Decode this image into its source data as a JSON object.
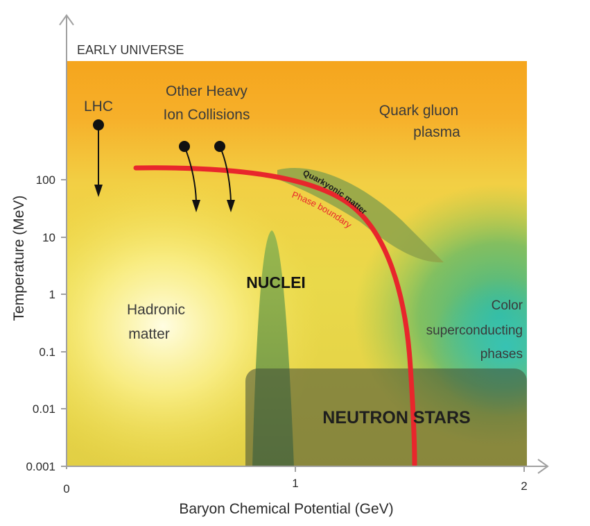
{
  "header": "EARLY UNIVERSE",
  "axes": {
    "x_label": "Baryon Chemical Potential (GeV)",
    "y_label": "Temperature (MeV)",
    "x_ticks": [
      "0",
      "1",
      "2"
    ],
    "y_ticks": [
      "100",
      "10",
      "1",
      "0.1",
      "0.01",
      "0.001"
    ],
    "y_scale": "log",
    "x_range": [
      0,
      2
    ],
    "y_range": [
      0.001,
      1000
    ]
  },
  "regions": {
    "qgp_line1": "Quark gluon",
    "qgp_line2": "plasma",
    "hadronic_line1": "Hadronic",
    "hadronic_line2": "matter",
    "nuclei": "NUCLEI",
    "neutron_stars": "NEUTRON STARS",
    "color_line1": "Color",
    "color_line2": "superconducting",
    "color_line3": "phases"
  },
  "curves": {
    "quarkyonic": "Quarkyonic matter",
    "phase_boundary": "Phase boundary"
  },
  "experiments": {
    "lhc": "LHC",
    "hic_line1": "Other Heavy",
    "hic_line2": "Ion Collisions"
  },
  "colors": {
    "orange": "#f5a81f",
    "yellow": "#fae88a",
    "phase_boundary": "#e8262c",
    "quarkyonic": "#8ea24a",
    "nuclei": "#6e9648",
    "neutron_stars": "#4a5a3a",
    "color_superconducting": "#2fb79a",
    "axis": "#9a9a9a"
  }
}
